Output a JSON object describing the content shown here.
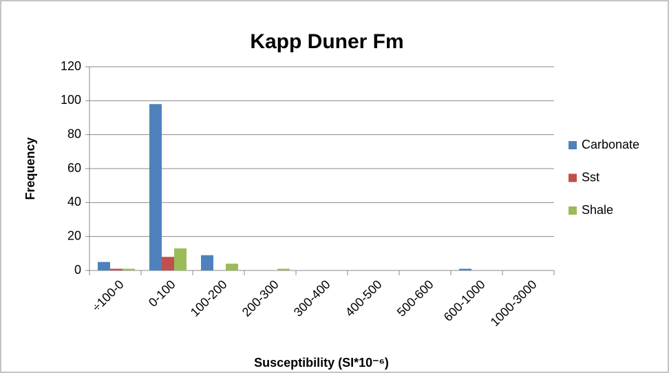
{
  "chart_data": {
    "type": "bar",
    "title": "Kapp Duner Fm",
    "x_label": "Susceptibility (SI*10⁻⁶)",
    "y_label": "Frequency",
    "categories": [
      "÷100-0",
      "0-100",
      "100-200",
      "200-300",
      "300-400",
      "400-500",
      "500-600",
      "600-1000",
      "1000-3000"
    ],
    "series": [
      {
        "name": "Carbonate",
        "color": "#4f81bd",
        "values": [
          5,
          98,
          9,
          0,
          0,
          0,
          0,
          1,
          0
        ]
      },
      {
        "name": "Sst",
        "color": "#c0504d",
        "values": [
          1,
          8,
          0,
          0,
          0,
          0,
          0,
          0,
          0
        ]
      },
      {
        "name": "Shale",
        "color": "#9bbb59",
        "values": [
          1,
          13,
          4,
          1,
          0,
          0,
          0,
          0,
          0
        ]
      }
    ],
    "ylim": [
      0,
      120
    ],
    "yticks": [
      0,
      20,
      40,
      60,
      80,
      100,
      120
    ],
    "grid": true,
    "legend": "right"
  }
}
